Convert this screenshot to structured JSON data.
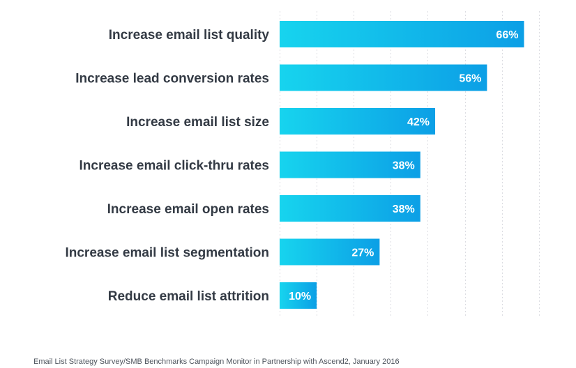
{
  "chart_data": {
    "type": "bar",
    "orientation": "horizontal",
    "categories": [
      "Increase email list quality",
      "Increase lead conversion rates",
      "Increase email list size",
      "Increase email click-thru rates",
      "Increase email open rates",
      "Increase email list segmentation",
      "Reduce email list attrition"
    ],
    "values": [
      66,
      56,
      42,
      38,
      38,
      27,
      10
    ],
    "value_labels": [
      "66%",
      "56%",
      "42%",
      "38%",
      "38%",
      "27%",
      "10%"
    ],
    "xlim": [
      0,
      70
    ],
    "grid": true,
    "bar_gradient": [
      "#17d4ee",
      "#0c9fe6"
    ],
    "value_label_color": "#ffffff"
  },
  "source_note": "Email List Strategy Survey/SMB Benchmarks Campaign Monitor in Partnership with Ascend2, January 2016"
}
